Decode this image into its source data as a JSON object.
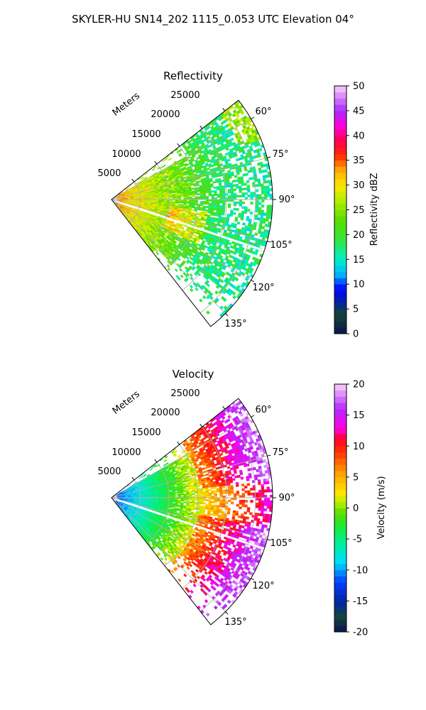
{
  "figure": {
    "title": "SKYLER-HU  SN14_202  1115_0.053 UTC Elevation 04°"
  },
  "chart_data": [
    {
      "type": "heatmap",
      "title": "Reflectivity",
      "projection": "polar sector",
      "radial_label": "Meters",
      "radial_ticks": [
        5000,
        10000,
        15000,
        20000,
        25000
      ],
      "azimuth_ticks": [
        "60°",
        "75°",
        "90°",
        "105°",
        "120°",
        "135°"
      ],
      "azimuth_range_deg": [
        52,
        142
      ],
      "range_max_m": 28000,
      "colorbar": {
        "label": "Reflectivity dBZ",
        "range": [
          0,
          50
        ],
        "ticks": [
          0,
          5,
          10,
          15,
          20,
          25,
          30,
          35,
          40,
          45,
          50
        ]
      },
      "grid": true,
      "description_values": {
        "near_range_dbz": 33,
        "mid_range_dbz": 21,
        "far_range_dbz": 24
      }
    },
    {
      "type": "heatmap",
      "title": "Velocity",
      "projection": "polar sector",
      "radial_label": "Meters",
      "radial_ticks": [
        5000,
        10000,
        15000,
        20000,
        25000
      ],
      "azimuth_ticks": [
        "60°",
        "75°",
        "90°",
        "105°",
        "120°",
        "135°"
      ],
      "azimuth_range_deg": [
        52,
        142
      ],
      "range_max_m": 28000,
      "colorbar": {
        "label": "Velocity (m/s)",
        "range": [
          -20,
          20
        ],
        "ticks": [
          -20,
          -15,
          -10,
          -5,
          0,
          5,
          10,
          15,
          20
        ]
      },
      "grid": true,
      "description_values": {
        "near_range_ms": -12,
        "mid_range_ms": 0,
        "far_range_ms": 15
      }
    }
  ]
}
